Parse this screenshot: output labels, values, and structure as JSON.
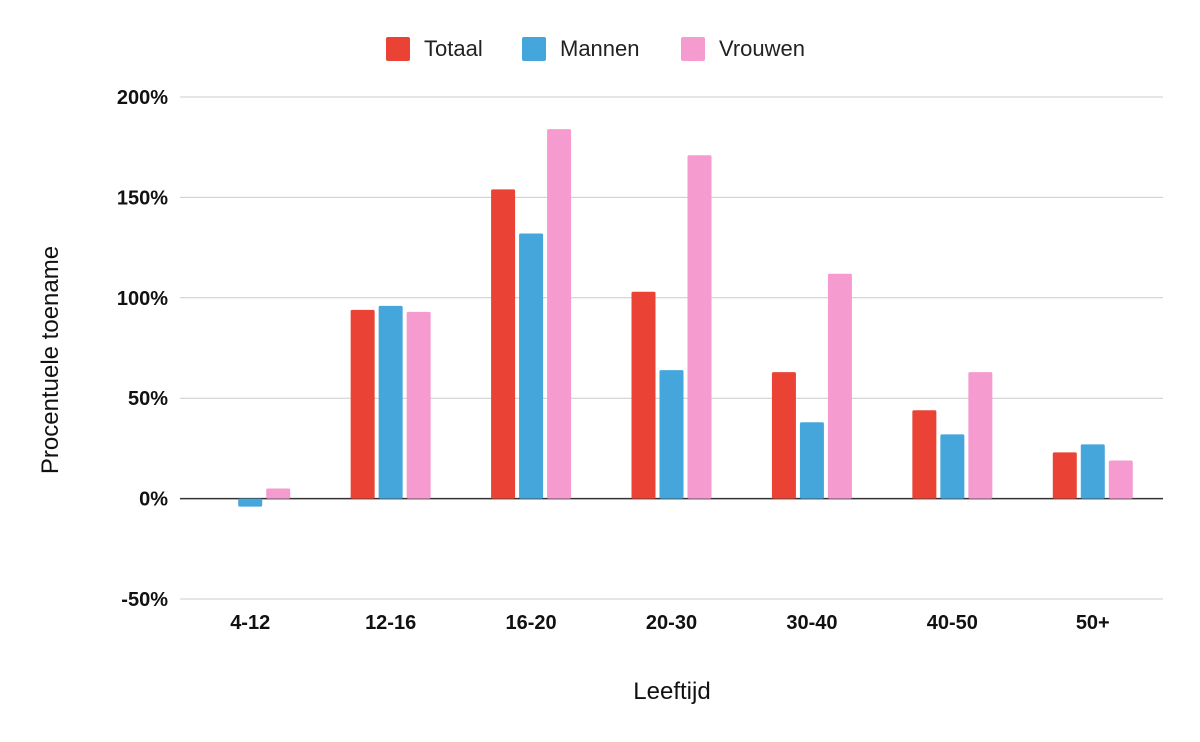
{
  "chart_data": {
    "type": "bar",
    "categories": [
      "4-12",
      "12-16",
      "16-20",
      "20-30",
      "30-40",
      "40-50",
      "50+"
    ],
    "series": [
      {
        "name": "Totaal",
        "color": "#ea4335",
        "values": [
          0,
          94,
          154,
          103,
          63,
          44,
          23
        ]
      },
      {
        "name": "Mannen",
        "color": "#45a6dc",
        "values": [
          -4,
          96,
          132,
          64,
          38,
          32,
          27
        ]
      },
      {
        "name": "Vrouwen",
        "color": "#f59bcf",
        "values": [
          5,
          93,
          184,
          171,
          112,
          63,
          19
        ]
      }
    ],
    "xlabel": "Leeftijd",
    "ylabel": "Procentuele toename",
    "ylim": [
      -50,
      200
    ],
    "yticks": [
      -50,
      0,
      50,
      100,
      150,
      200
    ],
    "ytick_labels": [
      "-50%",
      "0%",
      "50%",
      "100%",
      "150%",
      "200%"
    ],
    "grid": true,
    "legend_position": "top-center"
  }
}
